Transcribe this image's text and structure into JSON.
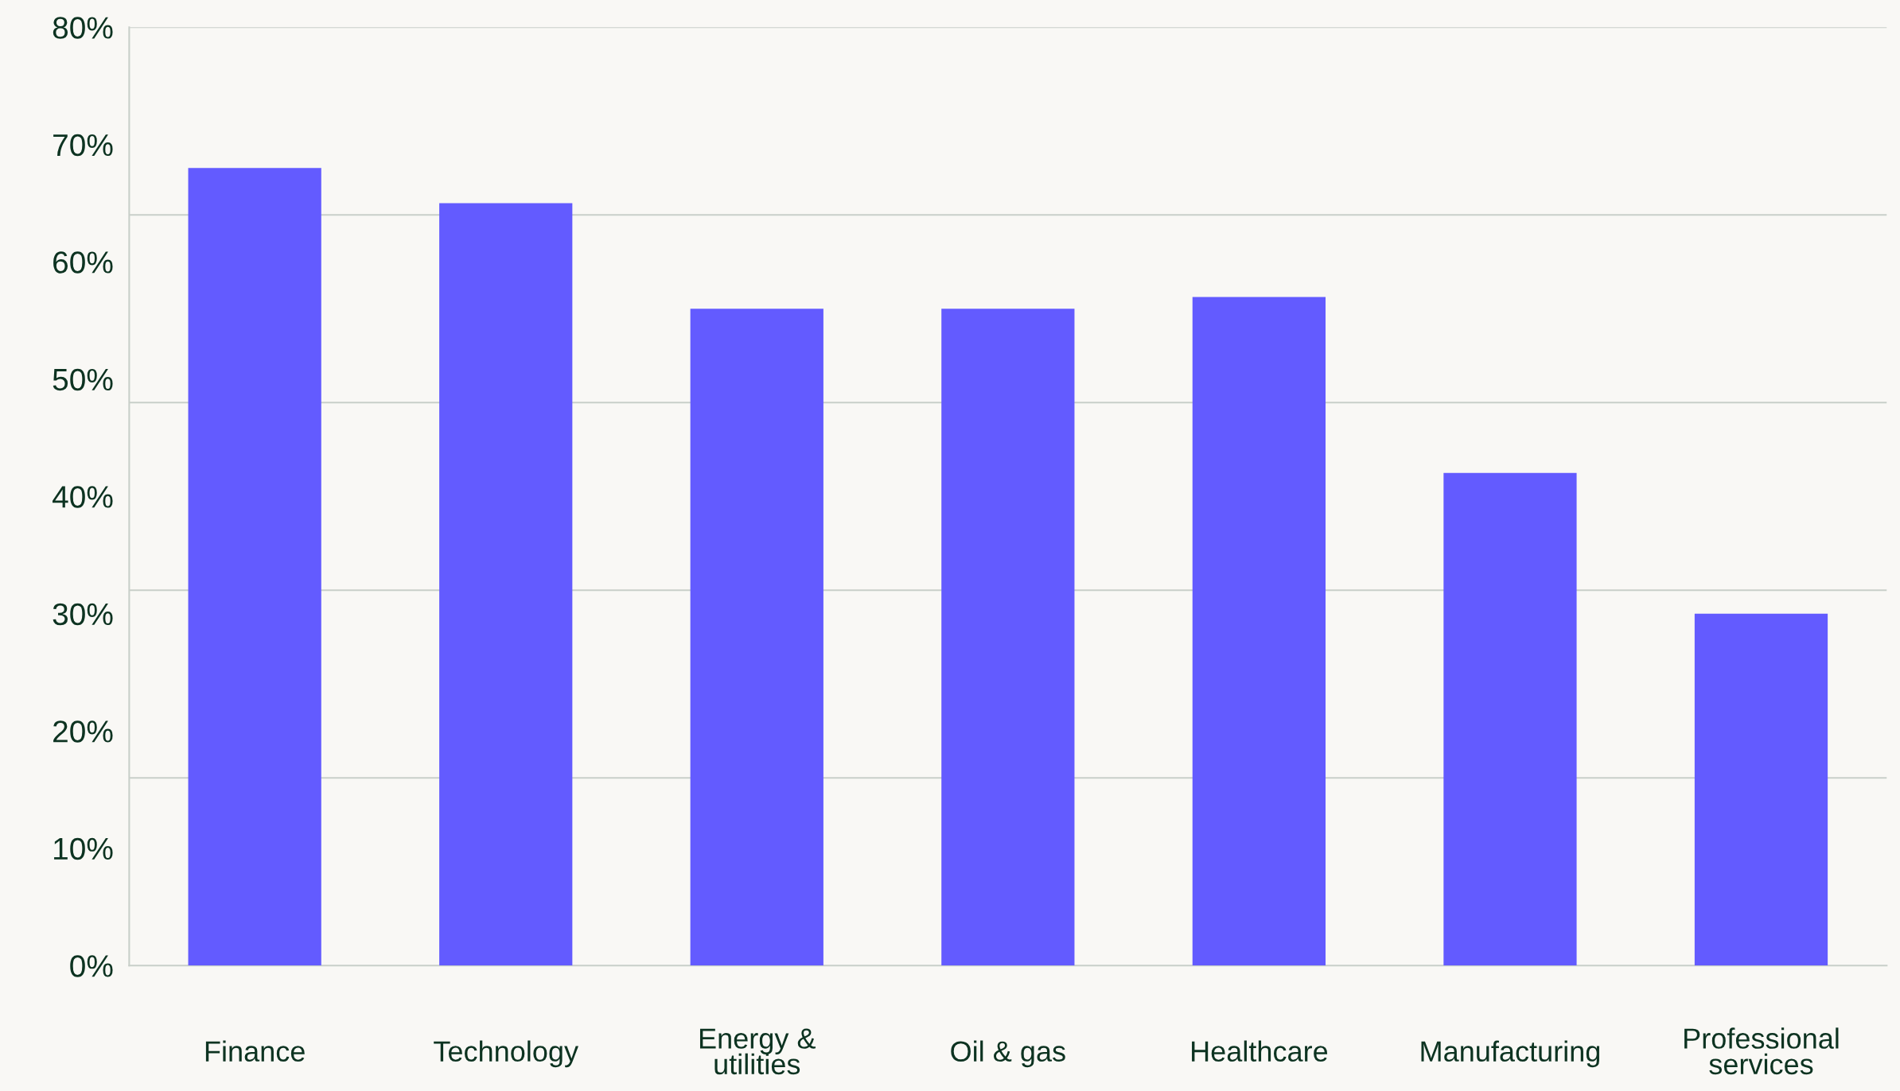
{
  "chart_data": {
    "type": "bar",
    "categories": [
      "Finance",
      "Technology",
      "Energy &\nutilities",
      "Oil & gas",
      "Healthcare",
      "Manufacturing",
      "Professional\nservices"
    ],
    "values": [
      68,
      65,
      56,
      56,
      57,
      42,
      30
    ],
    "color": "#635bff",
    "ylim": [
      0,
      80
    ],
    "yticks": [
      {
        "value": 0,
        "label": "0%"
      },
      {
        "value": 10,
        "label": "10%"
      },
      {
        "value": 20,
        "label": "20%"
      },
      {
        "value": 30,
        "label": "30%"
      },
      {
        "value": 40,
        "label": "40%"
      },
      {
        "value": 50,
        "label": "50%"
      },
      {
        "value": 60,
        "label": "60%"
      },
      {
        "value": 70,
        "label": "70%"
      },
      {
        "value": 80,
        "label": "80%"
      }
    ],
    "ref_lines": [
      {
        "axis": "y",
        "value": 16,
        "label": null,
        "color": "#c8cfc9"
      },
      {
        "axis": "y",
        "value": 32,
        "label": null,
        "color": "#c8cfc9"
      },
      {
        "axis": "y",
        "value": 48,
        "label": null,
        "color": "#c8cfc9"
      },
      {
        "axis": "y",
        "value": 64,
        "label": null,
        "color": "#c8cfc9"
      },
      {
        "axis": "y",
        "value": 80,
        "label": null,
        "color": "#c8cfc9"
      }
    ],
    "grid": false,
    "legend": false
  }
}
